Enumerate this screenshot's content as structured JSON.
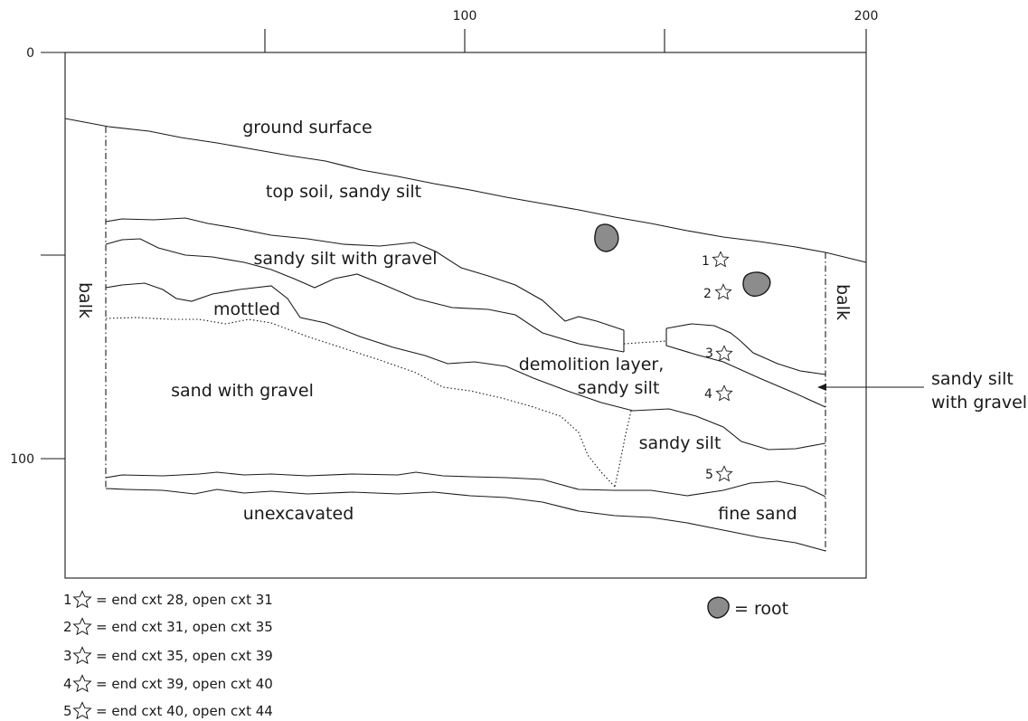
{
  "axes": {
    "top_ticks": [
      "100",
      "200"
    ],
    "left_ticks": [
      "0",
      "100"
    ]
  },
  "layers": {
    "ground_surface": "ground surface",
    "top_soil": "top soil, sandy silt",
    "sandy_silt_gravel": "sandy silt with gravel",
    "mottled": "mottled",
    "sand_gravel": "sand with gravel",
    "demolition_1": "demolition layer,",
    "demolition_2": "sandy silt",
    "sandy_silt": "sandy silt",
    "unexcavated": "unexcavated",
    "fine_sand": "fine sand",
    "balk_left": "balk",
    "balk_right": "balk"
  },
  "callout": {
    "line1": "sandy silt",
    "line2": "with gravel"
  },
  "markers": [
    "1",
    "2",
    "3",
    "4",
    "5"
  ],
  "legend": {
    "items": [
      {
        "num": "1",
        "text": "= end cxt 28, open cxt 31"
      },
      {
        "num": "2",
        "text": "= end cxt 31, open cxt 35"
      },
      {
        "num": "3",
        "text": "= end cxt 35, open cxt 39"
      },
      {
        "num": "4",
        "text": "= end cxt 39, open cxt 40"
      },
      {
        "num": "5",
        "text": "= end cxt 40, open cxt 44"
      }
    ],
    "root": "= root"
  },
  "icons": {
    "marker": "star-icon",
    "root": "root-blob-icon"
  }
}
